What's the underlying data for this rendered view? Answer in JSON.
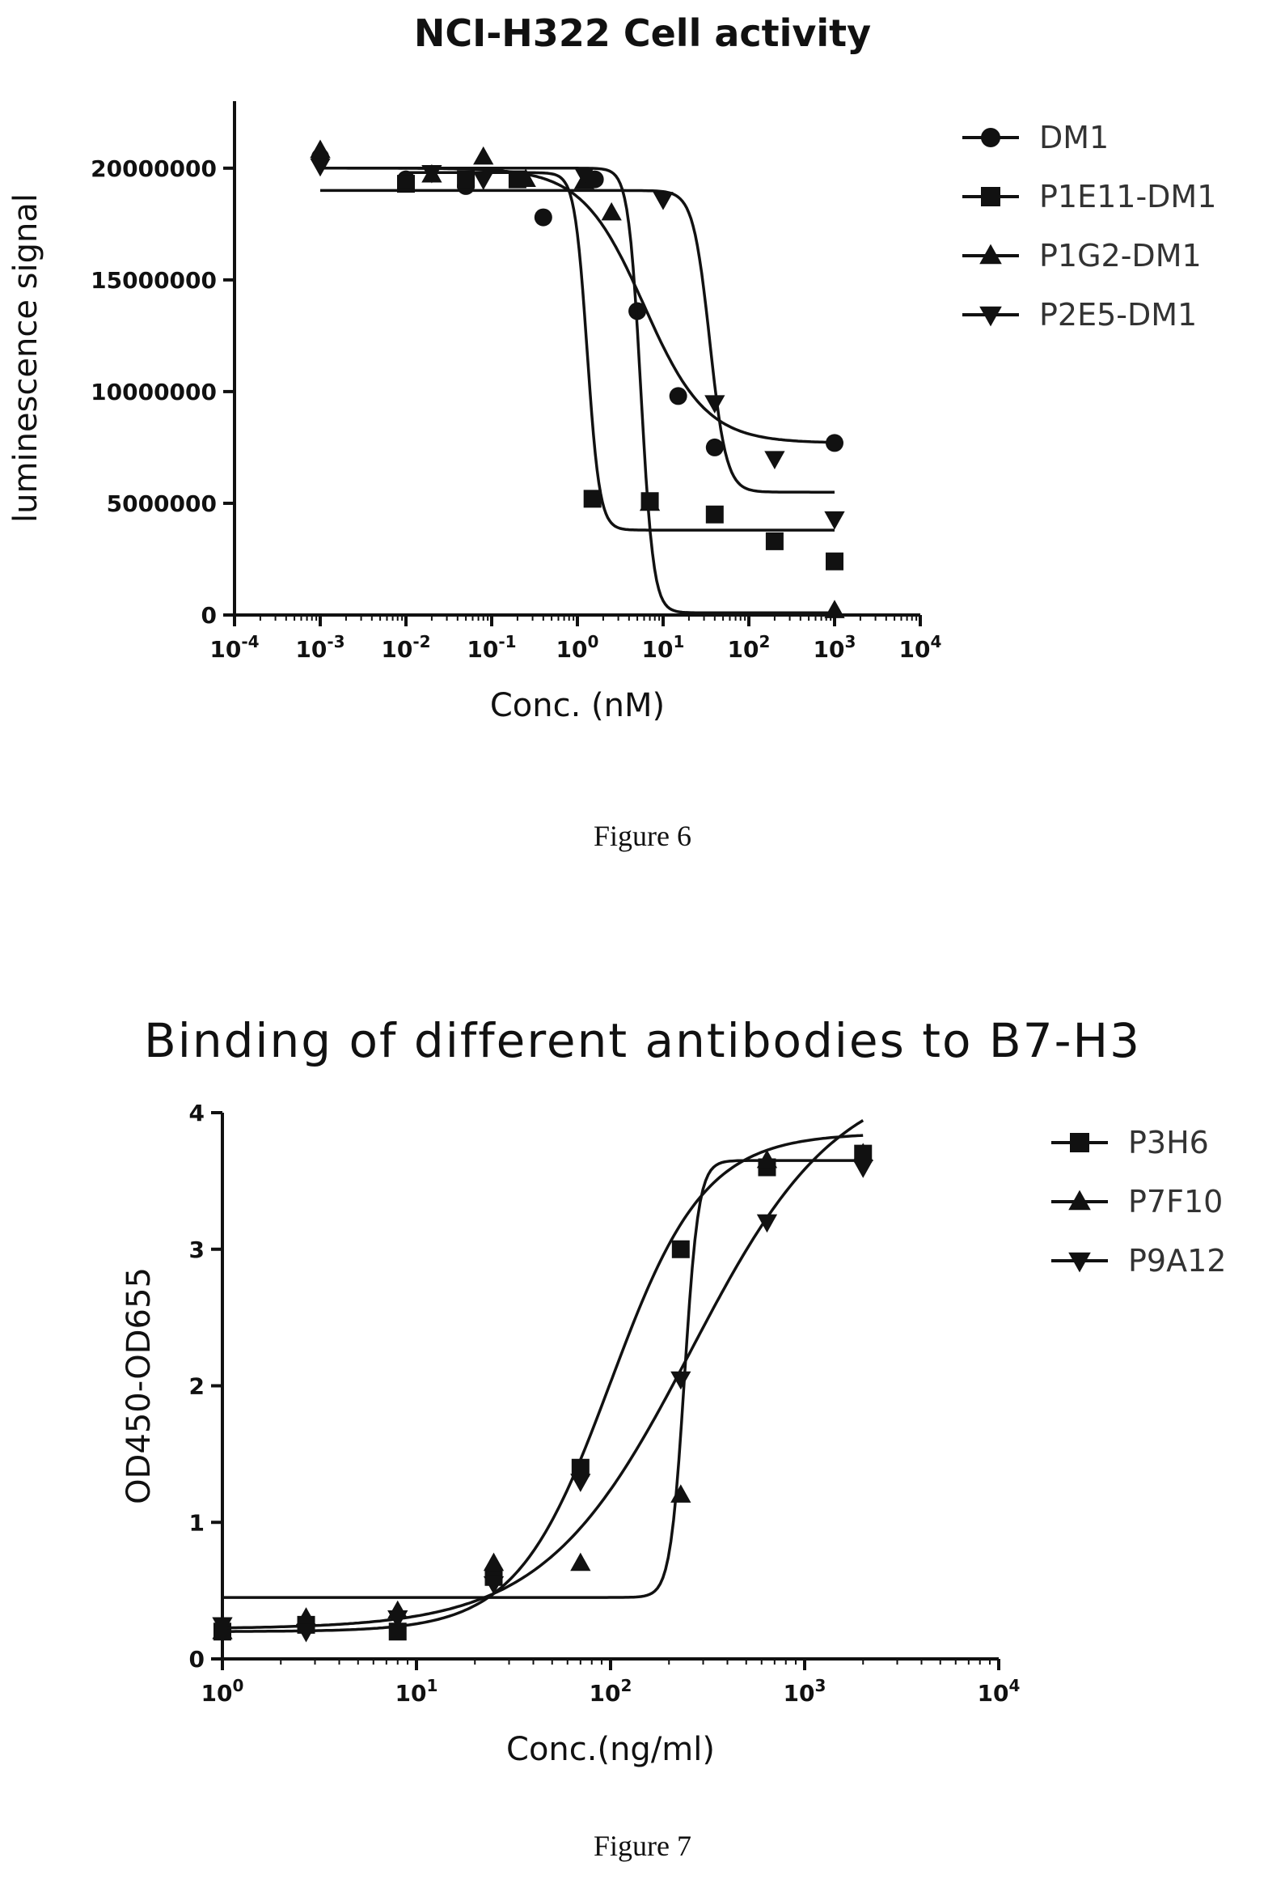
{
  "charts": [
    {
      "caption": "Figure 6",
      "chart_data": {
        "type": "scatter",
        "title": "NCI-H322 Cell activity",
        "xlabel": "Conc. (nM)",
        "ylabel": "luminescence signal",
        "x_scale": "log",
        "xlim": [
          0.0001,
          10000
        ],
        "ylim": [
          0,
          23000000
        ],
        "x_ticks": [
          0.0001,
          0.001,
          0.01,
          0.1,
          1,
          10,
          100,
          1000,
          10000
        ],
        "x_tick_labels": [
          "10-4",
          "10-3",
          "10-2",
          "10-1",
          "100",
          "101",
          "102",
          "103",
          "104"
        ],
        "y_ticks": [
          0,
          5000000,
          10000000,
          15000000,
          20000000
        ],
        "y_tick_labels": [
          "0",
          "5000000",
          "10000000",
          "15000000",
          "20000000"
        ],
        "legend_position": "right",
        "series": [
          {
            "name": "DM1",
            "marker": "circle",
            "x": [
              0.001,
              0.01,
              0.05,
              0.4,
              1.6,
              5,
              15,
              40,
              1000
            ],
            "y": [
              20500000,
              19500000,
              19200000,
              17800000,
              19500000,
              13600000,
              9800000,
              7500000,
              7700000
            ],
            "fit": {
              "bottom": 7700000,
              "top": 20000000,
              "ec50": 6,
              "hill": 1.2
            }
          },
          {
            "name": "P1E11-DM1",
            "marker": "square",
            "x": [
              0.01,
              0.05,
              0.2,
              1.5,
              7,
              40,
              200,
              1000
            ],
            "y": [
              19300000,
              19500000,
              19500000,
              5200000,
              5100000,
              4500000,
              3300000,
              2400000
            ],
            "fit": {
              "bottom": 3800000,
              "top": 19800000,
              "ec50": 1.3,
              "hill": 6
            }
          },
          {
            "name": "P1G2-DM1",
            "marker": "triangle-up",
            "x": [
              0.001,
              0.02,
              0.08,
              0.25,
              1.2,
              2.5,
              7,
              1000
            ],
            "y": [
              20800000,
              19700000,
              20500000,
              19500000,
              19400000,
              18000000,
              5000000,
              200000
            ],
            "fit": {
              "bottom": 100000,
              "top": 20000000,
              "ec50": 5.5,
              "hill": 6
            }
          },
          {
            "name": "P2E5-DM1",
            "marker": "triangle-down",
            "x": [
              0.001,
              0.02,
              0.08,
              1.2,
              10,
              40,
              200,
              1000
            ],
            "y": [
              20100000,
              19800000,
              19500000,
              19700000,
              18600000,
              9500000,
              7000000,
              4300000
            ],
            "fit": {
              "bottom": 5500000,
              "top": 19000000,
              "ec50": 35,
              "hill": 4.5
            }
          }
        ]
      }
    },
    {
      "caption": "Figure 7",
      "chart_data": {
        "type": "scatter",
        "title": "Binding of different antibodies to B7-H3",
        "xlabel": "Conc.(ng/ml)",
        "ylabel": "OD450-OD655",
        "x_scale": "log",
        "xlim": [
          1,
          10000
        ],
        "ylim": [
          0,
          4
        ],
        "x_ticks": [
          1,
          10,
          100,
          1000,
          10000
        ],
        "x_tick_labels": [
          "100",
          "101",
          "102",
          "103",
          "104"
        ],
        "y_ticks": [
          0,
          1,
          2,
          3,
          4
        ],
        "y_tick_labels": [
          "0",
          "1",
          "2",
          "3",
          "4"
        ],
        "legend_position": "right",
        "series": [
          {
            "name": "P3H6",
            "marker": "square",
            "x": [
              1,
              2.7,
              8,
              25,
              70,
              230,
              640,
              2000
            ],
            "y": [
              0.2,
              0.25,
              0.2,
              0.6,
              1.4,
              3.0,
              3.6,
              3.7
            ],
            "fit": {
              "bottom": 0.2,
              "top": 3.85,
              "ec50": 100,
              "hill": 1.8
            }
          },
          {
            "name": "P7F10",
            "marker": "triangle-up",
            "x": [
              1,
              2.7,
              8,
              25,
              70,
              230,
              640,
              2000
            ],
            "y": [
              0.2,
              0.3,
              0.35,
              0.7,
              0.7,
              1.2,
              3.65,
              3.7
            ],
            "fit": {
              "bottom": 0.45,
              "top": 3.65,
              "ec50": 240,
              "hill": 12
            }
          },
          {
            "name": "P9A12",
            "marker": "triangle-down",
            "x": [
              1,
              2.7,
              8,
              25,
              70,
              230,
              640,
              2000
            ],
            "y": [
              0.25,
              0.2,
              0.3,
              0.55,
              1.3,
              2.05,
              3.2,
              3.6
            ],
            "fit": {
              "bottom": 0.22,
              "top": 4.3,
              "ec50": 260,
              "hill": 1.15
            }
          }
        ]
      }
    }
  ]
}
